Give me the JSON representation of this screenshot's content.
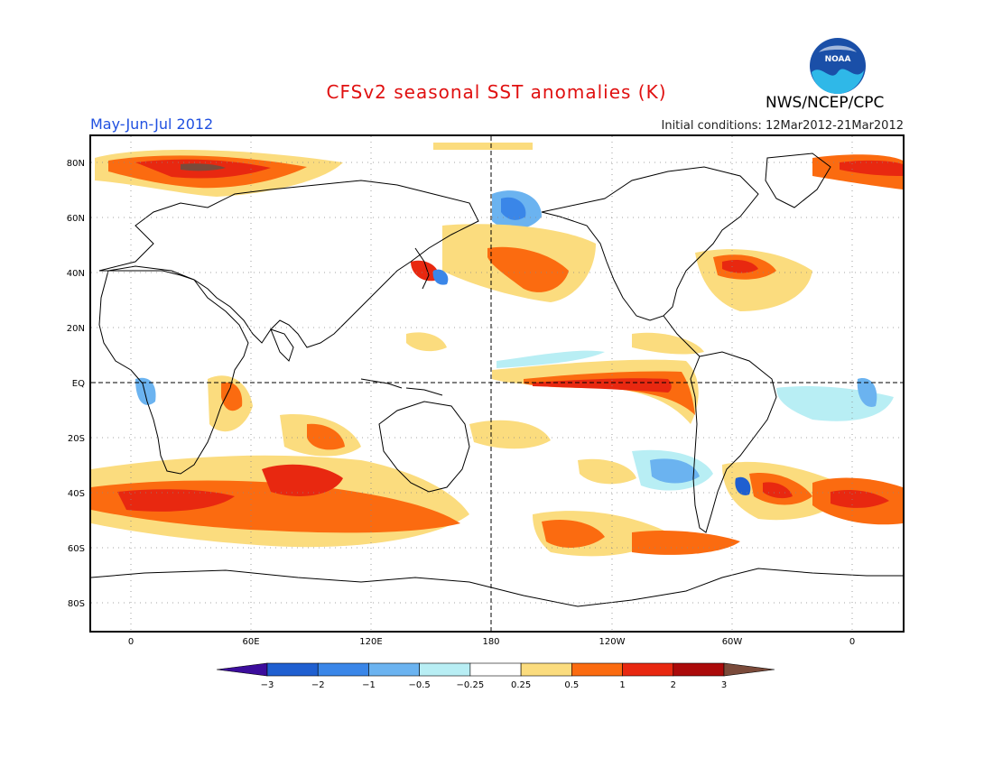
{
  "title": "CFSv2 seasonal SST anomalies (K)",
  "season": "May-Jun-Jul 2012",
  "initial_conditions": "Initial conditions: 12Mar2012-21Mar2012",
  "agency": "NWS/NCEP/CPC",
  "logo_text": "NOAA",
  "lat_labels": [
    "80N",
    "60N",
    "40N",
    "20N",
    "EQ",
    "20S",
    "40S",
    "60S",
    "80S"
  ],
  "lon_labels": [
    "0",
    "60E",
    "120E",
    "180",
    "120W",
    "60W",
    "0"
  ],
  "colorbar": {
    "labels": [
      "-3",
      "-2",
      "-1",
      "-0.5",
      "-0.25",
      "0.25",
      "0.5",
      "1",
      "2",
      "3"
    ],
    "colors": [
      "#3c0d9c",
      "#1f5fd0",
      "#3a86e8",
      "#6bb3f0",
      "#b8eef4",
      "#ffffff",
      "#fbdc7e",
      "#fb6b10",
      "#e82810",
      "#ab0a0a",
      "#7a4a3a"
    ]
  },
  "colors": {
    "title": "#e01010",
    "season": "#2050e0"
  }
}
